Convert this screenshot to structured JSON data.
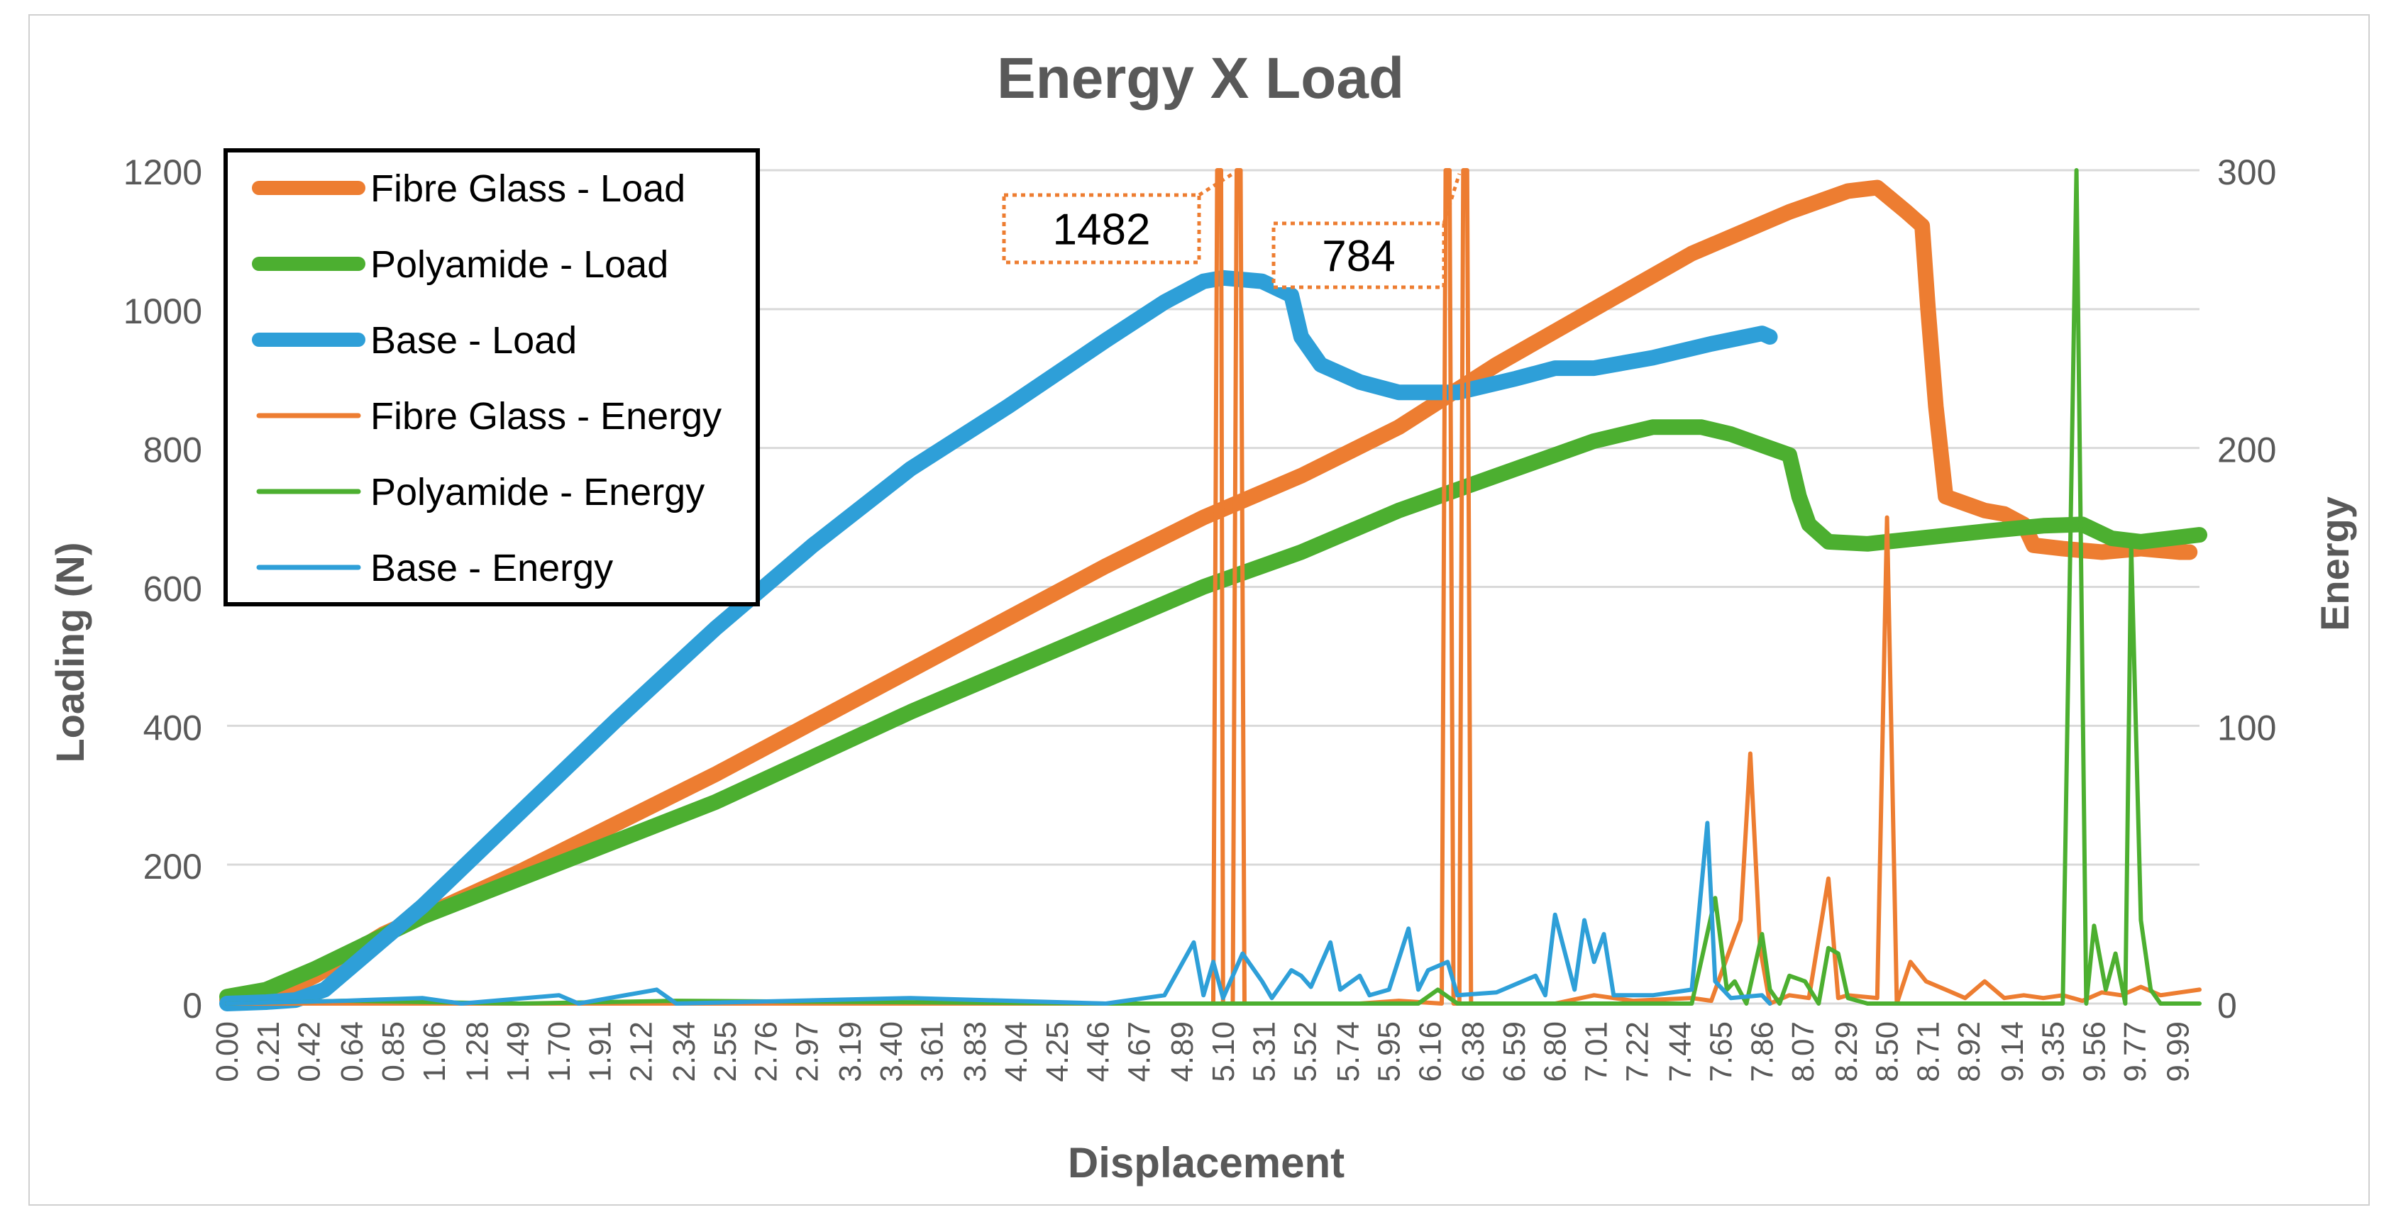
{
  "chart_data": {
    "type": "line",
    "title": "Energy X Load",
    "xlabel": "Displacement",
    "ylabel": "Loading (N)",
    "y2label": "Energy",
    "xlim": [
      0.0,
      10.1
    ],
    "ylim": [
      0,
      1200
    ],
    "y2lim": [
      0,
      300
    ],
    "yticks": [
      0,
      200,
      400,
      600,
      800,
      1000,
      1200
    ],
    "y2ticks": [
      0,
      100,
      200,
      300
    ],
    "xticks": [
      "0.00",
      "0.21",
      "0.42",
      "0.64",
      "0.85",
      "1.06",
      "1.28",
      "1.49",
      "1.70",
      "1.91",
      "2.12",
      "2.34",
      "2.55",
      "2.76",
      "2.97",
      "3.19",
      "3.40",
      "3.61",
      "3.83",
      "4.04",
      "4.25",
      "4.46",
      "4.67",
      "4.89",
      "5.10",
      "5.31",
      "5.52",
      "5.74",
      "5.95",
      "6.16",
      "6.38",
      "6.59",
      "6.80",
      "7.01",
      "7.22",
      "7.44",
      "7.65",
      "7.86",
      "8.07",
      "8.29",
      "8.50",
      "8.71",
      "8.92",
      "9.14",
      "9.35",
      "9.56",
      "9.77",
      "9.99"
    ],
    "grid": true,
    "legend_position": "top-left",
    "annotations": [
      {
        "text": "1482",
        "series": "Fibre Glass - Energy",
        "x": 5.15
      },
      {
        "text": "784",
        "series": "Fibre Glass - Energy",
        "x": 6.31
      }
    ],
    "series": [
      {
        "name": "Fibre Glass - Load",
        "axis": "left",
        "color": "#ED7D31",
        "width": "thick",
        "points": [
          [
            0.0,
            5
          ],
          [
            0.2,
            5
          ],
          [
            0.45,
            40
          ],
          [
            0.8,
            100
          ],
          [
            1.5,
            190
          ],
          [
            2.5,
            330
          ],
          [
            3.5,
            480
          ],
          [
            4.5,
            630
          ],
          [
            5.0,
            700
          ],
          [
            5.5,
            760
          ],
          [
            6.0,
            830
          ],
          [
            6.5,
            920
          ],
          [
            7.0,
            1000
          ],
          [
            7.5,
            1080
          ],
          [
            8.0,
            1140
          ],
          [
            8.3,
            1170
          ],
          [
            8.45,
            1175
          ],
          [
            8.6,
            1140
          ],
          [
            8.68,
            1120
          ],
          [
            8.71,
            1000
          ],
          [
            8.75,
            860
          ],
          [
            8.8,
            730
          ],
          [
            8.9,
            720
          ],
          [
            9.0,
            710
          ],
          [
            9.1,
            705
          ],
          [
            9.2,
            690
          ],
          [
            9.25,
            660
          ],
          [
            9.4,
            655
          ],
          [
            9.6,
            650
          ],
          [
            9.8,
            655
          ],
          [
            10.0,
            650
          ],
          [
            10.05,
            650
          ]
        ]
      },
      {
        "name": "Polyamide - Load",
        "axis": "left",
        "color": "#4CAF30",
        "width": "thick",
        "points": [
          [
            0.0,
            10
          ],
          [
            0.2,
            20
          ],
          [
            0.45,
            50
          ],
          [
            1.0,
            125
          ],
          [
            1.5,
            180
          ],
          [
            2.5,
            290
          ],
          [
            3.5,
            420
          ],
          [
            4.5,
            540
          ],
          [
            5.0,
            600
          ],
          [
            5.5,
            650
          ],
          [
            6.0,
            710
          ],
          [
            6.5,
            760
          ],
          [
            7.0,
            810
          ],
          [
            7.3,
            830
          ],
          [
            7.55,
            830
          ],
          [
            7.7,
            820
          ],
          [
            7.9,
            800
          ],
          [
            8.0,
            790
          ],
          [
            8.05,
            730
          ],
          [
            8.1,
            690
          ],
          [
            8.2,
            665
          ],
          [
            8.4,
            662
          ],
          [
            8.6,
            668
          ],
          [
            9.0,
            680
          ],
          [
            9.3,
            688
          ],
          [
            9.5,
            690
          ],
          [
            9.65,
            670
          ],
          [
            9.8,
            665
          ],
          [
            10.1,
            675
          ]
        ]
      },
      {
        "name": "Base - Load",
        "axis": "left",
        "color": "#2E9FD8",
        "width": "thick",
        "points": [
          [
            0.0,
            0
          ],
          [
            0.2,
            2
          ],
          [
            0.35,
            5
          ],
          [
            0.5,
            20
          ],
          [
            1.0,
            140
          ],
          [
            1.5,
            275
          ],
          [
            2.0,
            410
          ],
          [
            2.5,
            540
          ],
          [
            3.0,
            660
          ],
          [
            3.5,
            770
          ],
          [
            4.0,
            860
          ],
          [
            4.5,
            955
          ],
          [
            4.8,
            1010
          ],
          [
            5.0,
            1040
          ],
          [
            5.1,
            1045
          ],
          [
            5.3,
            1040
          ],
          [
            5.45,
            1020
          ],
          [
            5.5,
            960
          ],
          [
            5.6,
            920
          ],
          [
            5.8,
            895
          ],
          [
            6.0,
            880
          ],
          [
            6.3,
            880
          ],
          [
            6.6,
            900
          ],
          [
            6.8,
            915
          ],
          [
            7.0,
            915
          ],
          [
            7.3,
            930
          ],
          [
            7.6,
            950
          ],
          [
            7.86,
            965
          ],
          [
            7.9,
            960
          ]
        ]
      },
      {
        "name": "Fibre Glass - Energy",
        "axis": "right",
        "color": "#ED7D31",
        "width": "thin",
        "points": [
          [
            0.0,
            0
          ],
          [
            4.9,
            0
          ],
          [
            5.05,
            0
          ],
          [
            5.07,
            300
          ],
          [
            5.09,
            300
          ],
          [
            5.1,
            0
          ],
          [
            5.15,
            0
          ],
          [
            5.17,
            300
          ],
          [
            5.19,
            300
          ],
          [
            5.21,
            0
          ],
          [
            5.6,
            0
          ],
          [
            5.8,
            0
          ],
          [
            6.0,
            1
          ],
          [
            6.22,
            0
          ],
          [
            6.24,
            300
          ],
          [
            6.26,
            300
          ],
          [
            6.28,
            0
          ],
          [
            6.31,
            0
          ],
          [
            6.33,
            300
          ],
          [
            6.35,
            300
          ],
          [
            6.37,
            0
          ],
          [
            6.8,
            0
          ],
          [
            7.0,
            3
          ],
          [
            7.2,
            1
          ],
          [
            7.5,
            2
          ],
          [
            7.6,
            1
          ],
          [
            7.75,
            30
          ],
          [
            7.8,
            90
          ],
          [
            7.85,
            20
          ],
          [
            7.9,
            0
          ],
          [
            8.0,
            3
          ],
          [
            8.1,
            2
          ],
          [
            8.2,
            45
          ],
          [
            8.25,
            2
          ],
          [
            8.3,
            3
          ],
          [
            8.45,
            2
          ],
          [
            8.5,
            175
          ],
          [
            8.55,
            0
          ],
          [
            8.62,
            15
          ],
          [
            8.7,
            8
          ],
          [
            8.8,
            5
          ],
          [
            8.9,
            2
          ],
          [
            9.0,
            8
          ],
          [
            9.1,
            2
          ],
          [
            9.2,
            3
          ],
          [
            9.3,
            2
          ],
          [
            9.4,
            3
          ],
          [
            9.5,
            1
          ],
          [
            9.6,
            4
          ],
          [
            9.7,
            3
          ],
          [
            9.8,
            6
          ],
          [
            9.9,
            3
          ],
          [
            10.0,
            4
          ],
          [
            10.1,
            5
          ]
        ]
      },
      {
        "name": "Polyamide - Energy",
        "axis": "right",
        "color": "#4CAF30",
        "width": "thin",
        "points": [
          [
            0.0,
            0
          ],
          [
            0.6,
            1
          ],
          [
            1.5,
            0
          ],
          [
            2.3,
            1
          ],
          [
            4.5,
            0
          ],
          [
            5.5,
            0
          ],
          [
            6.1,
            0
          ],
          [
            6.2,
            5
          ],
          [
            6.3,
            0
          ],
          [
            7.0,
            0
          ],
          [
            7.5,
            0
          ],
          [
            7.62,
            38
          ],
          [
            7.68,
            5
          ],
          [
            7.72,
            8
          ],
          [
            7.78,
            0
          ],
          [
            7.86,
            25
          ],
          [
            7.9,
            5
          ],
          [
            7.95,
            0
          ],
          [
            8.0,
            10
          ],
          [
            8.08,
            8
          ],
          [
            8.15,
            0
          ],
          [
            8.2,
            20
          ],
          [
            8.25,
            18
          ],
          [
            8.3,
            2
          ],
          [
            8.4,
            0
          ],
          [
            9.0,
            0
          ],
          [
            9.4,
            0
          ],
          [
            9.47,
            300
          ],
          [
            9.52,
            0
          ],
          [
            9.56,
            28
          ],
          [
            9.62,
            5
          ],
          [
            9.67,
            18
          ],
          [
            9.72,
            0
          ],
          [
            9.75,
            165
          ],
          [
            9.8,
            30
          ],
          [
            9.85,
            5
          ],
          [
            9.9,
            0
          ],
          [
            10.1,
            0
          ]
        ]
      },
      {
        "name": "Base - Energy",
        "axis": "right",
        "color": "#2E9FD8",
        "width": "thin",
        "points": [
          [
            0.0,
            0
          ],
          [
            0.6,
            1
          ],
          [
            1.0,
            2
          ],
          [
            1.2,
            0
          ],
          [
            1.7,
            3
          ],
          [
            1.8,
            0
          ],
          [
            2.2,
            5
          ],
          [
            2.3,
            0
          ],
          [
            3.5,
            2
          ],
          [
            4.5,
            0
          ],
          [
            4.8,
            3
          ],
          [
            4.95,
            22
          ],
          [
            5.0,
            3
          ],
          [
            5.05,
            15
          ],
          [
            5.1,
            2
          ],
          [
            5.2,
            18
          ],
          [
            5.3,
            8
          ],
          [
            5.35,
            2
          ],
          [
            5.45,
            12
          ],
          [
            5.5,
            10
          ],
          [
            5.55,
            6
          ],
          [
            5.65,
            22
          ],
          [
            5.7,
            5
          ],
          [
            5.8,
            10
          ],
          [
            5.85,
            3
          ],
          [
            5.95,
            5
          ],
          [
            6.05,
            27
          ],
          [
            6.1,
            5
          ],
          [
            6.15,
            12
          ],
          [
            6.25,
            15
          ],
          [
            6.3,
            3
          ],
          [
            6.5,
            4
          ],
          [
            6.7,
            10
          ],
          [
            6.75,
            3
          ],
          [
            6.8,
            32
          ],
          [
            6.9,
            5
          ],
          [
            6.95,
            30
          ],
          [
            7.0,
            15
          ],
          [
            7.05,
            25
          ],
          [
            7.1,
            3
          ],
          [
            7.3,
            3
          ],
          [
            7.5,
            5
          ],
          [
            7.58,
            65
          ],
          [
            7.62,
            8
          ],
          [
            7.7,
            2
          ],
          [
            7.86,
            3
          ],
          [
            7.9,
            0
          ]
        ]
      }
    ]
  }
}
